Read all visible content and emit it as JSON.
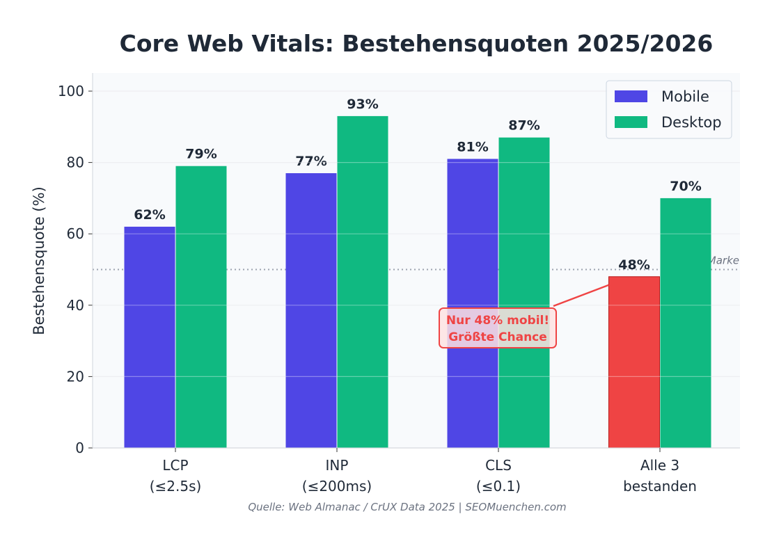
{
  "chart_data": {
    "type": "bar",
    "title": "Core Web Vitals: Bestehensquoten 2025/2026",
    "xlabel": "",
    "ylabel": "Bestehensquote (%)",
    "ylim": [
      0,
      105
    ],
    "yticks": [
      0,
      20,
      40,
      60,
      80,
      100
    ],
    "grid": true,
    "legend_position": "top-right",
    "categories": [
      [
        "LCP",
        "(≤2.5s)"
      ],
      [
        "INP",
        "(≤200ms)"
      ],
      [
        "CLS",
        "(≤0.1)"
      ],
      [
        "Alle 3",
        "bestanden"
      ]
    ],
    "series": [
      {
        "name": "Mobile",
        "values": [
          62,
          77,
          81,
          48
        ],
        "color": "#4f46e5",
        "highlight_color": "#ef4444",
        "highlight_index": 3
      },
      {
        "name": "Desktop",
        "values": [
          79,
          93,
          87,
          70
        ],
        "color": "#10b981"
      }
    ],
    "data_labels": [
      [
        "62%",
        "77%",
        "81%",
        "48%"
      ],
      [
        "79%",
        "93%",
        "87%",
        "70%"
      ]
    ],
    "reference_line": {
      "value": 50,
      "label": "50%-Marke",
      "color": "#9ca3af"
    },
    "annotation": {
      "lines": [
        "Nur 48% mobil!",
        "Größte Chance"
      ],
      "color": "#ef4444",
      "target_category": 3,
      "target_value": 48
    },
    "source": "Quelle: Web Almanac / CrUX Data 2025 | SEOMuenchen.com",
    "colors": {
      "background": "#f8fafc",
      "grid": "#e5e7eb",
      "text": "#1f2937"
    }
  }
}
